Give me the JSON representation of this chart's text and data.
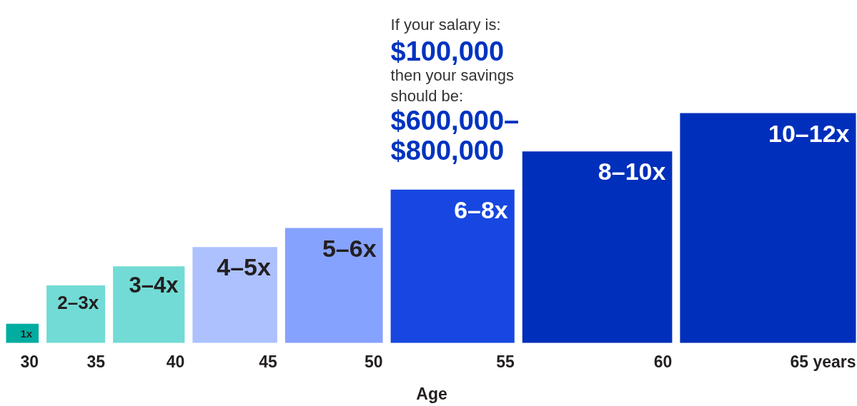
{
  "chart_data": {
    "type": "bar",
    "tick_labels": "x",
    "categories": [
      "30",
      "35",
      "40",
      "45",
      "50",
      "55",
      "60",
      "65 years"
    ],
    "values": [
      1,
      3,
      4,
      5,
      6,
      8,
      10,
      12
    ],
    "colors": [
      "#00ada0",
      "#72dbd5",
      "#72dbd5",
      "#adc1ff",
      "#86a2ff",
      "#1747e0",
      "#002fbb",
      "#002fbb"
    ],
    "value_labels": [
      "1x",
      "2–3x",
      "3–4x",
      "4–5x",
      "5–6x",
      "6–8x",
      "8–10x",
      "10–12x"
    ],
    "xlabel": "Age",
    "annotations": [
      "If your salary is:",
      "$100,000",
      "then your savings\nshould be:",
      {
        "text": "$600,000–\n$800,000",
        "x": "55",
        "y": 8
      }
    ]
  }
}
